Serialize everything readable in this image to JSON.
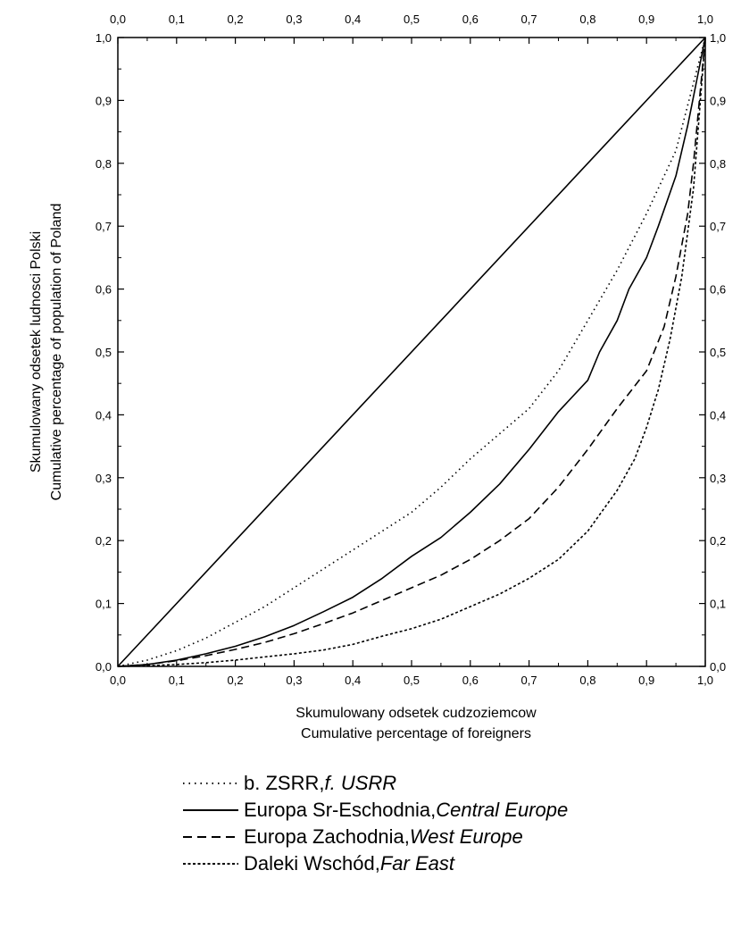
{
  "chart_data": {
    "type": "line",
    "xlabel_pl": "Skumulowany odsetek cudzoziemcow",
    "xlabel_en": "Cumulative percentage of foreigners",
    "ylabel_pl": "Skumulowany odsetek ludnosci Polski",
    "ylabel_en": "Cumulative percentage of population of Poland",
    "xlim": [
      0,
      1
    ],
    "ylim": [
      0,
      1
    ],
    "tick_labels": [
      "0,0",
      "0,1",
      "0,2",
      "0,3",
      "0,4",
      "0,5",
      "0,6",
      "0,7",
      "0,8",
      "0,9",
      "1,0"
    ],
    "grid": false,
    "legend_position": "bottom",
    "equality_line": {
      "x": [
        0,
        1
      ],
      "y": [
        0,
        1
      ],
      "style": "solid"
    },
    "series": [
      {
        "name": "b. ZSRR",
        "name_en": "f. USRR",
        "style": "dotted",
        "x": [
          0,
          0.05,
          0.1,
          0.15,
          0.2,
          0.25,
          0.3,
          0.35,
          0.4,
          0.45,
          0.5,
          0.55,
          0.6,
          0.65,
          0.7,
          0.75,
          0.8,
          0.85,
          0.9,
          0.95,
          1.0
        ],
        "y": [
          0,
          0.01,
          0.025,
          0.045,
          0.07,
          0.095,
          0.125,
          0.155,
          0.185,
          0.215,
          0.245,
          0.285,
          0.33,
          0.37,
          0.41,
          0.47,
          0.55,
          0.63,
          0.72,
          0.82,
          1.0
        ]
      },
      {
        "name": "Europa Sr-Eschodnia",
        "name_en": "Central Europe",
        "style": "solid",
        "x": [
          0,
          0.05,
          0.1,
          0.15,
          0.2,
          0.25,
          0.3,
          0.35,
          0.4,
          0.45,
          0.5,
          0.55,
          0.6,
          0.65,
          0.7,
          0.75,
          0.8,
          0.82,
          0.85,
          0.87,
          0.9,
          0.92,
          0.95,
          0.97,
          1.0
        ],
        "y": [
          0,
          0.003,
          0.01,
          0.02,
          0.032,
          0.047,
          0.065,
          0.087,
          0.11,
          0.14,
          0.175,
          0.205,
          0.245,
          0.29,
          0.345,
          0.405,
          0.455,
          0.5,
          0.55,
          0.6,
          0.65,
          0.7,
          0.78,
          0.86,
          1.0
        ]
      },
      {
        "name": "Europa Zachodnia",
        "name_en": "West Europe",
        "style": "dashed",
        "x": [
          0,
          0.05,
          0.1,
          0.15,
          0.2,
          0.25,
          0.3,
          0.35,
          0.4,
          0.45,
          0.5,
          0.55,
          0.6,
          0.65,
          0.7,
          0.75,
          0.8,
          0.85,
          0.9,
          0.93,
          0.95,
          0.97,
          0.98,
          1.0
        ],
        "y": [
          0,
          0.003,
          0.009,
          0.017,
          0.027,
          0.038,
          0.052,
          0.068,
          0.085,
          0.105,
          0.125,
          0.145,
          0.17,
          0.2,
          0.235,
          0.285,
          0.345,
          0.41,
          0.47,
          0.54,
          0.62,
          0.72,
          0.8,
          1.0
        ]
      },
      {
        "name": "Daleki Wschód",
        "name_en": "Far East",
        "style": "short-dashed",
        "x": [
          0,
          0.05,
          0.1,
          0.15,
          0.2,
          0.25,
          0.3,
          0.35,
          0.4,
          0.45,
          0.5,
          0.55,
          0.6,
          0.65,
          0.7,
          0.75,
          0.8,
          0.85,
          0.88,
          0.9,
          0.92,
          0.94,
          0.96,
          0.98,
          1.0
        ],
        "y": [
          0,
          0.001,
          0.003,
          0.006,
          0.01,
          0.015,
          0.02,
          0.026,
          0.035,
          0.048,
          0.06,
          0.075,
          0.095,
          0.115,
          0.14,
          0.17,
          0.215,
          0.28,
          0.33,
          0.38,
          0.44,
          0.52,
          0.62,
          0.76,
          1.0
        ]
      }
    ]
  }
}
